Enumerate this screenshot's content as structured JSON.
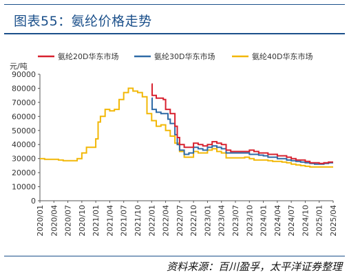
{
  "header": {
    "title": "图表55：氨纶价格走势"
  },
  "footer": {
    "source": "资料来源：百川盈孚，太平洋证券整理"
  },
  "chart_data": {
    "type": "line",
    "unit_label": "元/吨",
    "ylim": [
      0,
      90000
    ],
    "yticks": [
      "0",
      "10000",
      "20000",
      "30000",
      "40000",
      "50000",
      "60000",
      "70000",
      "80000",
      "90000"
    ],
    "xlim": [
      "2020-01",
      "2025-04"
    ],
    "xticks": [
      "2020/01",
      "2020/04",
      "2020/07",
      "2020/10",
      "2021/01",
      "2021/04",
      "2021/07",
      "2021/10",
      "2022/01",
      "2022/04",
      "2022/07",
      "2022/10",
      "2023/01",
      "2023/04",
      "2023/07",
      "2023/10",
      "2024/01",
      "2024/04",
      "2024/07",
      "2024/10",
      "2025/01",
      "2025/04"
    ],
    "legend_position": "top",
    "series": [
      {
        "name": "氨纶20D华东市场",
        "color": "#d7202e",
        "points": [
          [
            "2022-01",
            83000
          ],
          [
            "2022-01.1",
            75000
          ],
          [
            "2022-01.5",
            75000
          ],
          [
            "2022-02",
            73000
          ],
          [
            "2022-03",
            73000
          ],
          [
            "2022-03.5",
            72000
          ],
          [
            "2022-04",
            65000
          ],
          [
            "2022-05",
            62000
          ],
          [
            "2022-06",
            53000
          ],
          [
            "2022-06.5",
            45000
          ],
          [
            "2022-07",
            40000
          ],
          [
            "2022-08",
            38000
          ],
          [
            "2022-09",
            38000
          ],
          [
            "2022-10",
            41000
          ],
          [
            "2022-11",
            40000
          ],
          [
            "2022-12",
            39000
          ],
          [
            "2023-01",
            40000
          ],
          [
            "2023-02",
            42000
          ],
          [
            "2023-03",
            41000
          ],
          [
            "2023-04",
            40000
          ],
          [
            "2023-05",
            36000
          ],
          [
            "2023-06",
            35000
          ],
          [
            "2023-07",
            35000
          ],
          [
            "2023-08",
            35000
          ],
          [
            "2023-09",
            35000
          ],
          [
            "2023-10",
            36000
          ],
          [
            "2023-11",
            35000
          ],
          [
            "2023-12",
            34000
          ],
          [
            "2024-01",
            34000
          ],
          [
            "2024-02",
            33000
          ],
          [
            "2024-03",
            33000
          ],
          [
            "2024-04",
            32000
          ],
          [
            "2024-05",
            32000
          ],
          [
            "2024-06",
            31000
          ],
          [
            "2024-07",
            30000
          ],
          [
            "2024-08",
            29000
          ],
          [
            "2024-09",
            29000
          ],
          [
            "2024-10",
            28000
          ],
          [
            "2024-11",
            27000
          ],
          [
            "2024-12",
            27000
          ],
          [
            "2025-01",
            26500
          ],
          [
            "2025-02",
            27000
          ],
          [
            "2025-03",
            27500
          ],
          [
            "2025-04",
            27500
          ]
        ]
      },
      {
        "name": "氨纶30D华东市场",
        "color": "#2e6aa6",
        "points": [
          [
            "2022-01",
            73000
          ],
          [
            "2022-01.1",
            65000
          ],
          [
            "2022-02",
            63000
          ],
          [
            "2022-03",
            62000
          ],
          [
            "2022-04",
            62000
          ],
          [
            "2022-04.5",
            58000
          ],
          [
            "2022-05",
            55000
          ],
          [
            "2022-06",
            47000
          ],
          [
            "2022-06.5",
            40000
          ],
          [
            "2022-07",
            36000
          ],
          [
            "2022-08",
            33000
          ],
          [
            "2022-09",
            34000
          ],
          [
            "2022-10",
            38000
          ],
          [
            "2022-11",
            37000
          ],
          [
            "2022-12",
            36000
          ],
          [
            "2023-01",
            38000
          ],
          [
            "2023-02",
            39000
          ],
          [
            "2023-03",
            38000
          ],
          [
            "2023-04",
            37000
          ],
          [
            "2023-05",
            34000
          ],
          [
            "2023-06",
            34000
          ],
          [
            "2023-07",
            34000
          ],
          [
            "2023-08",
            34000
          ],
          [
            "2023-09",
            34000
          ],
          [
            "2023-10",
            33000
          ],
          [
            "2023-11",
            33000
          ],
          [
            "2023-12",
            32500
          ],
          [
            "2024-01",
            32000
          ],
          [
            "2024-02",
            31000
          ],
          [
            "2024-03",
            31000
          ],
          [
            "2024-04",
            30000
          ],
          [
            "2024-05",
            30000
          ],
          [
            "2024-06",
            29000
          ],
          [
            "2024-07",
            28500
          ],
          [
            "2024-08",
            28000
          ],
          [
            "2024-09",
            27500
          ],
          [
            "2024-10",
            27000
          ],
          [
            "2024-11",
            26500
          ],
          [
            "2024-12",
            26000
          ],
          [
            "2025-01",
            26000
          ],
          [
            "2025-02",
            26500
          ],
          [
            "2025-03",
            27000
          ],
          [
            "2025-04",
            27000
          ]
        ]
      },
      {
        "name": "氨纶40D华东市场",
        "color": "#f2b705",
        "points": [
          [
            "2020-01",
            30000
          ],
          [
            "2020-02",
            29500
          ],
          [
            "2020-03",
            29500
          ],
          [
            "2020-04",
            29500
          ],
          [
            "2020-05",
            29000
          ],
          [
            "2020-06",
            28500
          ],
          [
            "2020-07",
            28500
          ],
          [
            "2020-08",
            28500
          ],
          [
            "2020-09",
            30000
          ],
          [
            "2020-10",
            34000
          ],
          [
            "2020-11",
            38000
          ],
          [
            "2020-12",
            38000
          ],
          [
            "2021-01",
            44000
          ],
          [
            "2021-01.5",
            56000
          ],
          [
            "2021-02",
            60000
          ],
          [
            "2021-03",
            65000
          ],
          [
            "2021-04",
            64000
          ],
          [
            "2021-05",
            65000
          ],
          [
            "2021-06",
            72000
          ],
          [
            "2021-07",
            77000
          ],
          [
            "2021-08",
            80000
          ],
          [
            "2021-09",
            78000
          ],
          [
            "2021-10",
            77000
          ],
          [
            "2021-11",
            74000
          ],
          [
            "2021-12",
            62000
          ],
          [
            "2022-01",
            57000
          ],
          [
            "2022-02",
            53000
          ],
          [
            "2022-03",
            54000
          ],
          [
            "2022-04",
            50000
          ],
          [
            "2022-05",
            46000
          ],
          [
            "2022-06",
            41000
          ],
          [
            "2022-07",
            35000
          ],
          [
            "2022-08",
            31000
          ],
          [
            "2022-09",
            31000
          ],
          [
            "2022-10",
            35000
          ],
          [
            "2022-11",
            34000
          ],
          [
            "2022-12",
            34000
          ],
          [
            "2023-01",
            36000
          ],
          [
            "2023-02",
            37000
          ],
          [
            "2023-03",
            35000
          ],
          [
            "2023-04",
            34000
          ],
          [
            "2023-05",
            30500
          ],
          [
            "2023-06",
            30500
          ],
          [
            "2023-07",
            30500
          ],
          [
            "2023-08",
            30500
          ],
          [
            "2023-09",
            31000
          ],
          [
            "2023-10",
            30000
          ],
          [
            "2023-11",
            29000
          ],
          [
            "2023-12",
            29000
          ],
          [
            "2024-01",
            29000
          ],
          [
            "2024-02",
            28500
          ],
          [
            "2024-03",
            28000
          ],
          [
            "2024-04",
            28000
          ],
          [
            "2024-05",
            27500
          ],
          [
            "2024-06",
            27000
          ],
          [
            "2024-07",
            26000
          ],
          [
            "2024-08",
            25500
          ],
          [
            "2024-09",
            25000
          ],
          [
            "2024-10",
            24500
          ],
          [
            "2024-11",
            24000
          ],
          [
            "2024-12",
            24000
          ],
          [
            "2025-01",
            24000
          ],
          [
            "2025-02",
            24000
          ],
          [
            "2025-03",
            24000
          ],
          [
            "2025-04",
            24000
          ]
        ]
      }
    ]
  }
}
